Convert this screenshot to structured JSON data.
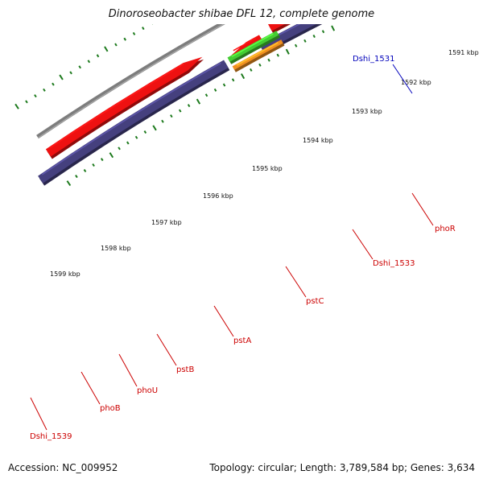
{
  "title": "Dinoroseobacter shibae DFL 12, complete genome",
  "footer": {
    "accession": "Accession: NC_009952",
    "summary": "Topology: circular; Length: 3,789,584 bp; Genes: 3,634"
  },
  "colors": {
    "backbone": "#7d7d7d",
    "forward_gene": "#ee1111",
    "reverse_cds": "#45407e",
    "highlight_gene": "#1a1aee",
    "green_feature": "#44cc33",
    "orange_feature": "#f09020",
    "grey_feature": "#c4c4c4",
    "tick": "#1d7a1d",
    "label_red": "#cc0000",
    "label_blue": "#0000bb"
  },
  "scale_labels": [
    {
      "id": "1591",
      "text": "1591 kbp"
    },
    {
      "id": "1592",
      "text": "1592 kbp"
    },
    {
      "id": "1593",
      "text": "1593 kbp"
    },
    {
      "id": "1594",
      "text": "1594 kbp"
    },
    {
      "id": "1595",
      "text": "1595 kbp"
    },
    {
      "id": "1596",
      "text": "1596 kbp"
    },
    {
      "id": "1597",
      "text": "1597 kbp"
    },
    {
      "id": "1598",
      "text": "1598 kbp"
    },
    {
      "id": "1599",
      "text": "1599 kbp"
    }
  ],
  "gene_labels": [
    {
      "id": "Dshi_1531",
      "text": "Dshi_1531",
      "color": "blue"
    },
    {
      "id": "phoR",
      "text": "phoR",
      "color": "red"
    },
    {
      "id": "Dshi_1533",
      "text": "Dshi_1533",
      "color": "red"
    },
    {
      "id": "pstC",
      "text": "pstC",
      "color": "red"
    },
    {
      "id": "pstA",
      "text": "pstA",
      "color": "red"
    },
    {
      "id": "pstB",
      "text": "pstB",
      "color": "red"
    },
    {
      "id": "phoU",
      "text": "phoU",
      "color": "red"
    },
    {
      "id": "phoB",
      "text": "phoB",
      "color": "red"
    },
    {
      "id": "Dshi_1539",
      "text": "Dshi_1539",
      "color": "red"
    }
  ]
}
